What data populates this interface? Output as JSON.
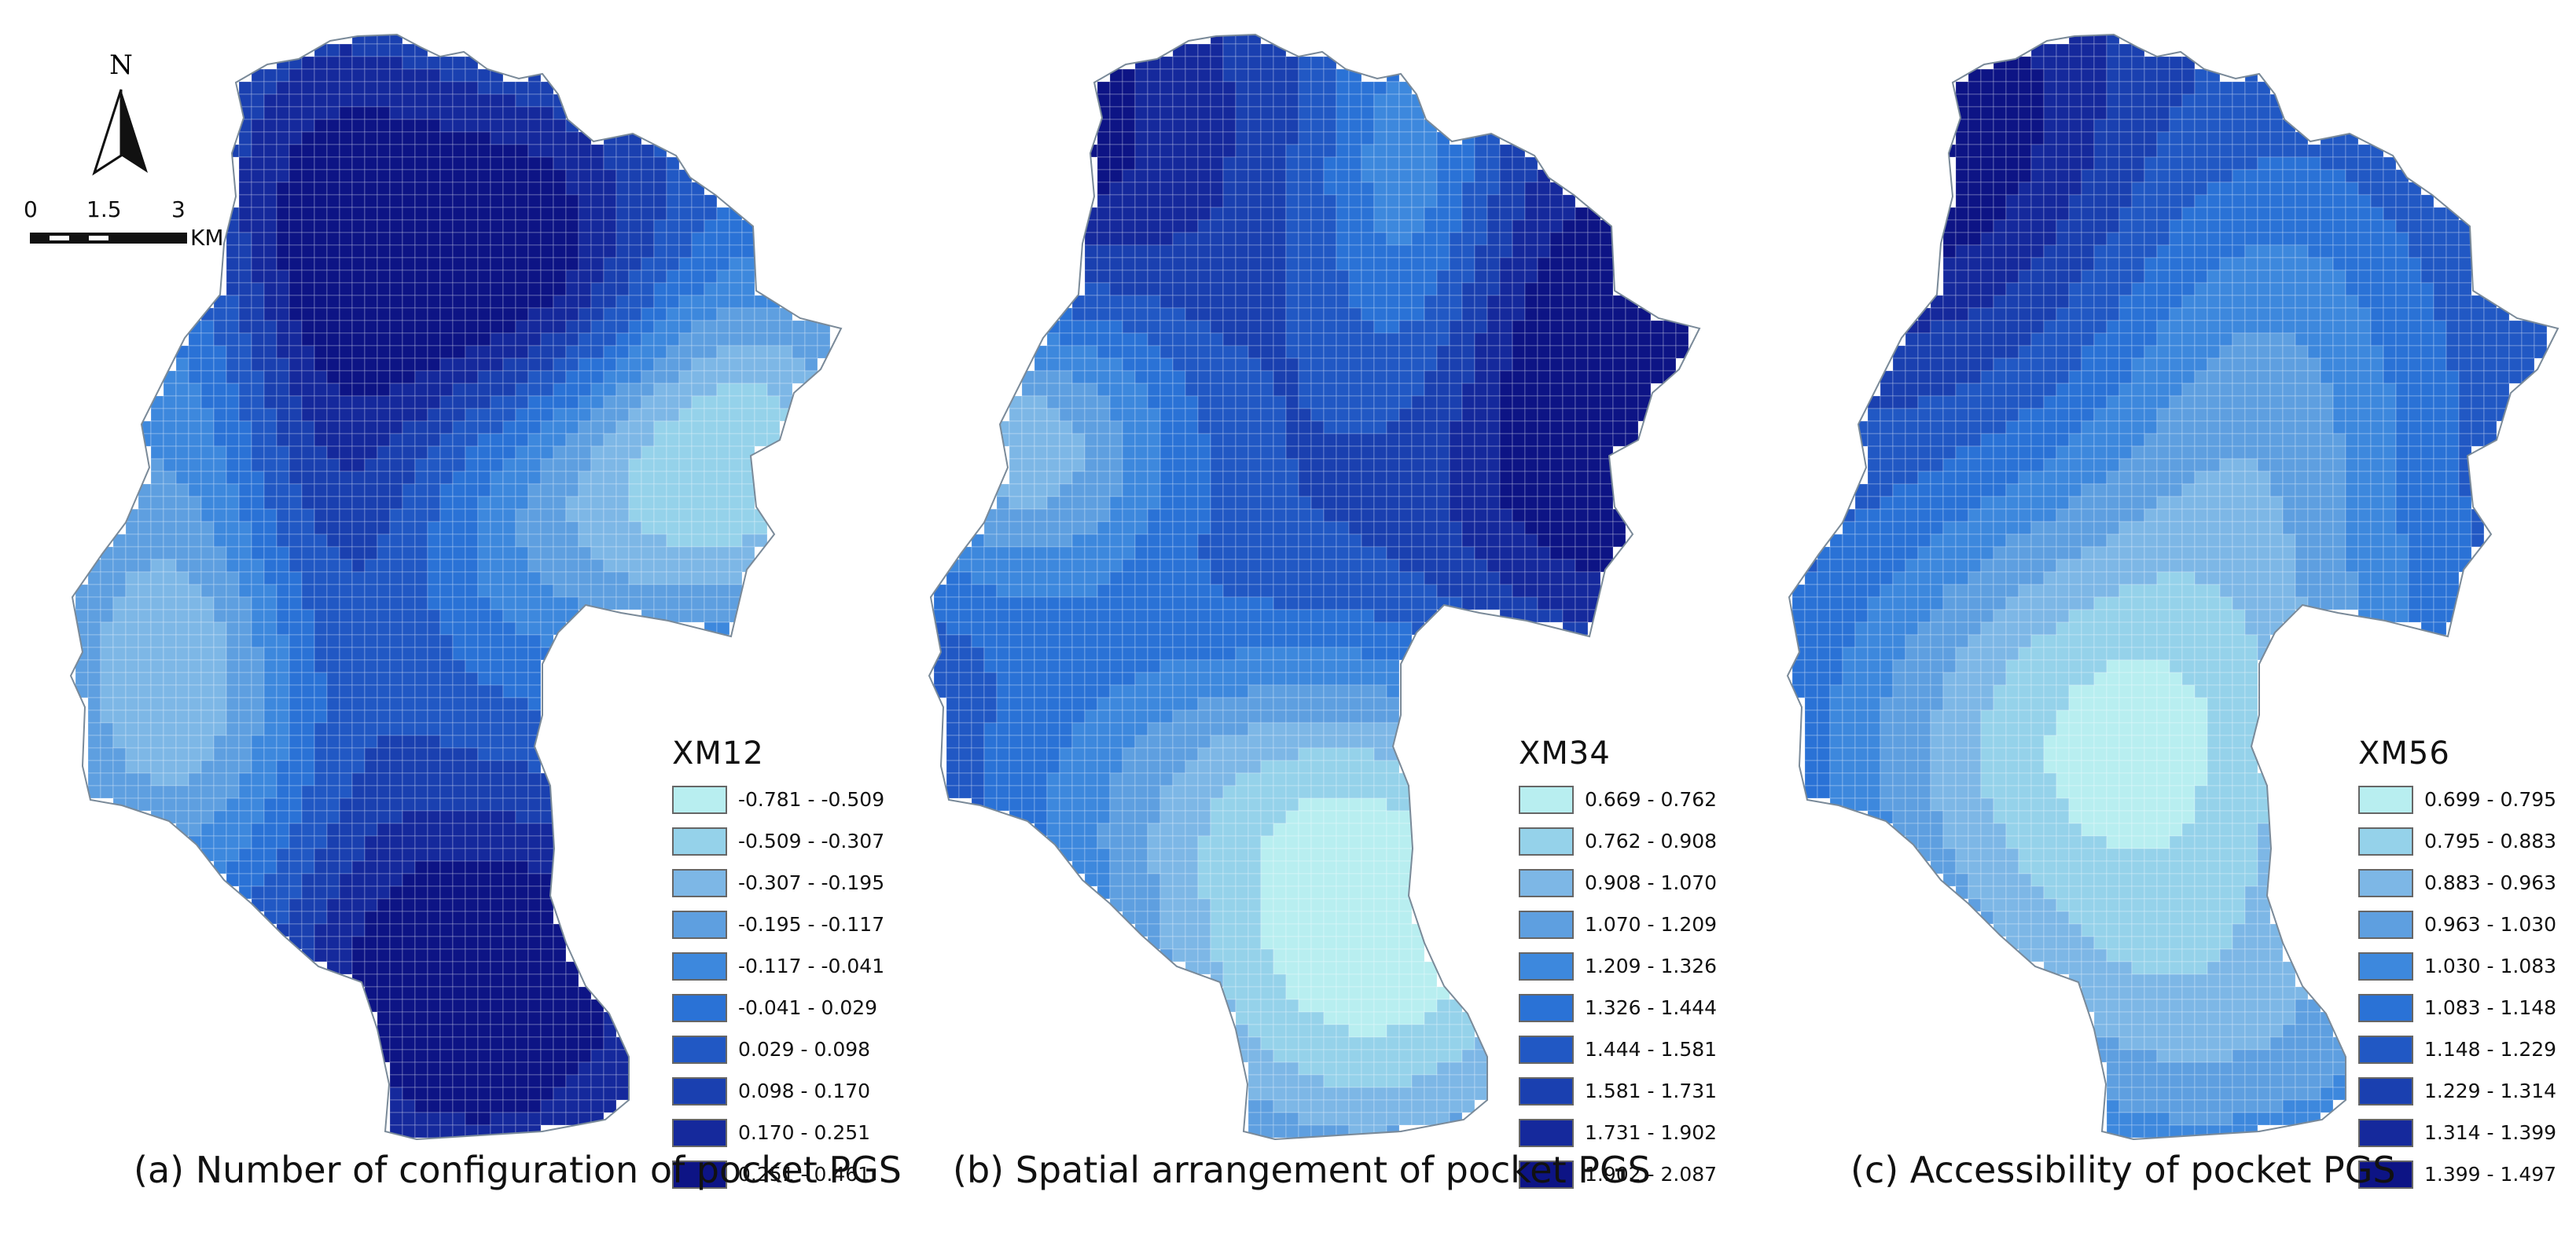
{
  "north_arrow": {
    "letter": "N"
  },
  "scale_bar": {
    "ticks": [
      "0",
      "1.5",
      "3"
    ],
    "unit": "KM"
  },
  "panels": [
    {
      "legend_title": "XM12",
      "caption": "(a) Number of configuration of pocket PGS",
      "classes": [
        "-0.781 - -0.509",
        "-0.509 - -0.307",
        "-0.307 - -0.195",
        "-0.195 - -0.117",
        "-0.117 - -0.041",
        "-0.041 - 0.029",
        "0.029 - 0.098",
        "0.098 - 0.170",
        "0.170 - 0.251",
        "0.251 - 0.461"
      ]
    },
    {
      "legend_title": "XM34",
      "caption": "(b) Spatial arrangement of pocket PGS",
      "classes": [
        "0.669 - 0.762",
        "0.762 - 0.908",
        "0.908 - 1.070",
        "1.070 - 1.209",
        "1.209 - 1.326",
        "1.326 - 1.444",
        "1.444 - 1.581",
        "1.581 - 1.731",
        "1.731 - 1.902",
        "1.902 - 2.087"
      ]
    },
    {
      "legend_title": "XM56",
      "caption": "(c) Accessibility of pocket PGS",
      "classes": [
        "0.699 - 0.795",
        "0.795 - 0.883",
        "0.883 - 0.963",
        "0.963 - 1.030",
        "1.030 - 1.083",
        "1.083 - 1.148",
        "1.148 - 1.229",
        "1.229 - 1.314",
        "1.314 - 1.399",
        "1.399 - 1.497"
      ]
    }
  ],
  "palette": [
    "#b8eef0",
    "#95d2ea",
    "#7db7e6",
    "#5e9fe0",
    "#3d88dd",
    "#2a72d6",
    "#2158c4",
    "#1a40b0",
    "#15299c",
    "#0d1485"
  ]
}
